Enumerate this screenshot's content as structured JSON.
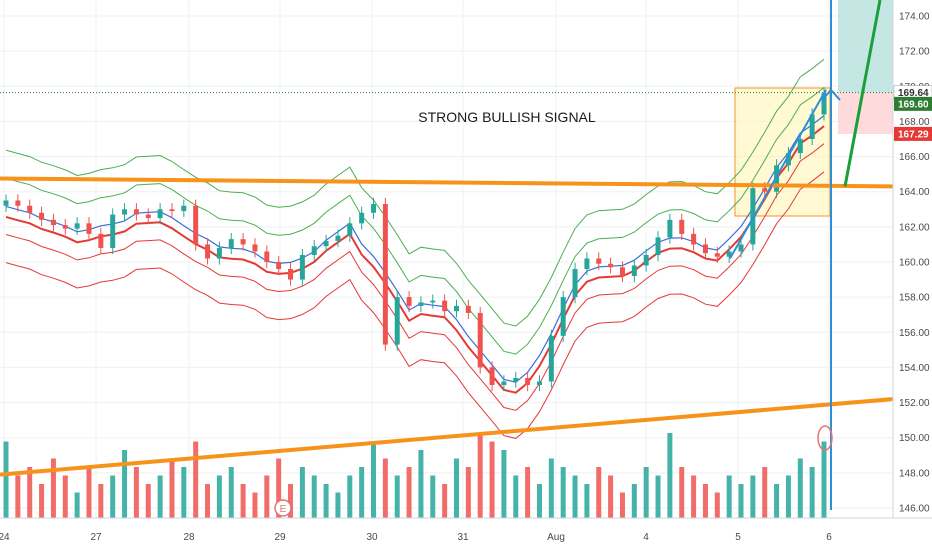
{
  "chart_data": {
    "type": "candlestick",
    "title": "",
    "annotation": "STRONG BULLISH SIGNAL",
    "ylim": [
      145,
      175
    ],
    "y_ticks": [
      "146.00",
      "148.00",
      "150.00",
      "152.00",
      "154.00",
      "156.00",
      "158.00",
      "160.00",
      "162.00",
      "164.00",
      "166.00",
      "168.00",
      "170.00",
      "172.00",
      "174.00"
    ],
    "x_ticks": [
      "24",
      "27",
      "28",
      "29",
      "30",
      "31",
      "Aug",
      "4",
      "5",
      "6"
    ],
    "grid": true,
    "colors": {
      "up": "#26a69a",
      "down": "#ef5350",
      "green_band": "#4caf50",
      "red_band": "#e53935",
      "basis": "#3b6fd8",
      "support": "#f7931a",
      "target_zone": "#b2dfdb",
      "stop_zone": "#ffcdd2",
      "signal_box": "#fff59d",
      "arrow": "#1aa03a"
    },
    "price_tags": [
      {
        "label": "169.64",
        "color": "#ffffff",
        "text_color": "#333333",
        "value": 169.64
      },
      {
        "label": "169.60",
        "color": "#2e7d32",
        "text_color": "#ffffff",
        "value": 169.0
      },
      {
        "label": "167.29",
        "color": "#e53935",
        "text_color": "#ffffff",
        "value": 167.29
      }
    ],
    "close_dotted": 169.64,
    "resistance": {
      "value": 164.3
    },
    "support_trendline": {
      "start_date": "24",
      "start_value": 147.9,
      "end_date": "6",
      "end_value": 152.2
    },
    "earnings_marker": "E",
    "candle_closes": [
      163.5,
      163.2,
      162.8,
      162.4,
      162.1,
      161.9,
      162.2,
      161.6,
      160.8,
      162.7,
      163.0,
      162.7,
      162.5,
      163.0,
      162.9,
      163.2,
      161.0,
      160.2,
      160.8,
      161.3,
      161.0,
      160.6,
      160.0,
      159.6,
      159.0,
      160.4,
      160.9,
      161.2,
      161.5,
      162.2,
      162.8,
      163.3,
      155.3,
      158.0,
      157.5,
      157.7,
      157.8,
      157.2,
      157.5,
      157.1,
      154.0,
      153.0,
      153.2,
      153.4,
      153.0,
      153.2,
      155.8,
      158.0,
      159.6,
      160.2,
      159.9,
      159.7,
      159.2,
      159.8,
      160.4,
      161.4,
      162.4,
      161.6,
      161.0,
      160.5,
      160.3,
      160.6,
      161.0,
      164.2,
      164.0,
      165.5,
      166.2,
      167.0,
      168.4,
      169.6
    ],
    "volume_relative": [
      0.9,
      0.5,
      0.6,
      0.4,
      0.7,
      0.5,
      0.3,
      0.6,
      0.4,
      0.5,
      0.8,
      0.6,
      0.4,
      0.5,
      0.7,
      0.6,
      0.9,
      0.4,
      0.5,
      0.6,
      0.4,
      0.3,
      0.5,
      0.7,
      0.4,
      0.6,
      0.5,
      0.4,
      0.3,
      0.5,
      0.6,
      0.9,
      0.7,
      0.5,
      0.6,
      0.8,
      0.5,
      0.4,
      0.7,
      0.6,
      1.0,
      0.9,
      0.8,
      0.5,
      0.6,
      0.4,
      0.7,
      0.6,
      0.5,
      0.4,
      0.6,
      0.5,
      0.3,
      0.4,
      0.6,
      0.5,
      1.0,
      0.6,
      0.5,
      0.4,
      0.3,
      0.5,
      0.4,
      0.5,
      0.6,
      0.4,
      0.5,
      0.7,
      0.6,
      0.9
    ]
  }
}
